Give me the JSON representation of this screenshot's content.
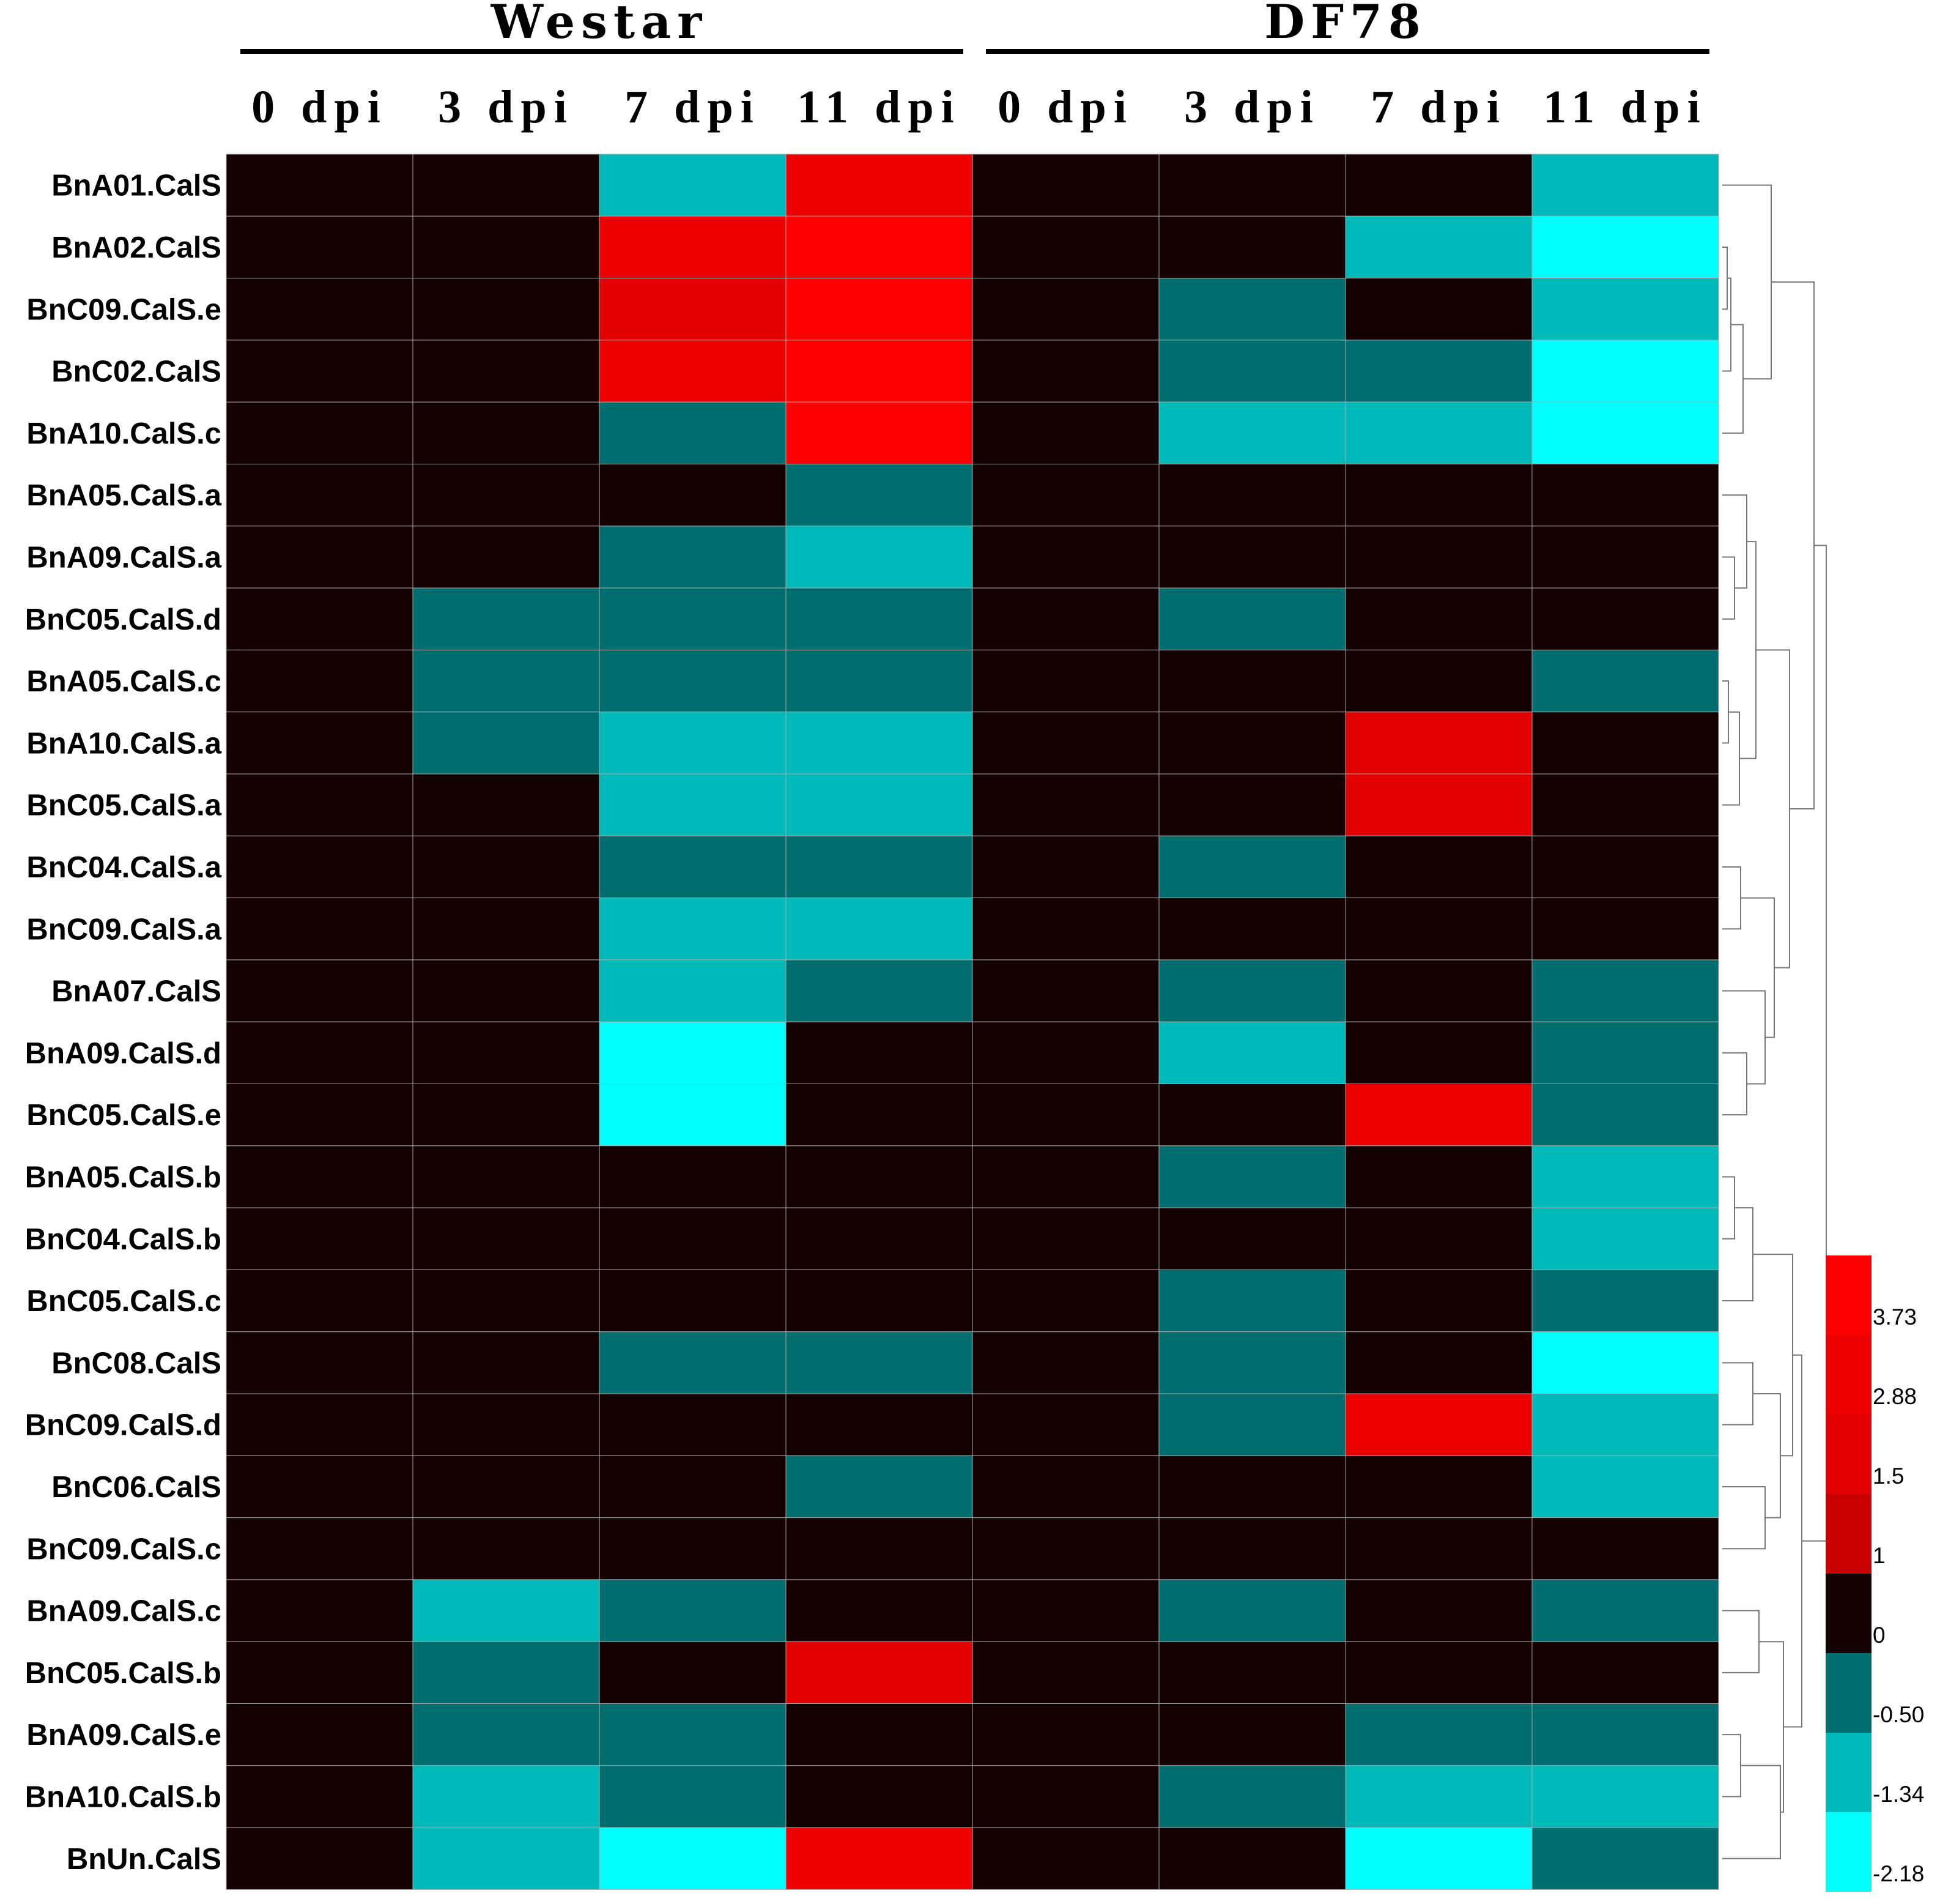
{
  "chart_data": {
    "type": "heatmap",
    "groups": [
      "Westar",
      "DF78"
    ],
    "columns": [
      "0 dpi",
      "3 dpi",
      "7 dpi",
      "11 dpi",
      "0 dpi",
      "3 dpi",
      "7 dpi",
      "11 dpi"
    ],
    "rows": [
      "BnA01.CalS",
      "BnA02.CalS",
      "BnC09.CalS.e",
      "BnC02.CalS",
      "BnA10.CalS.c",
      "BnA05.CalS.a",
      "BnA09.CalS.a",
      "BnC05.CalS.d",
      "BnA05.CalS.c",
      "BnA10.CalS.a",
      "BnC05.CalS.a",
      "BnC04.CalS.a",
      "BnC09.CalS.a",
      "BnA07.CalS",
      "BnA09.CalS.d",
      "BnC05.CalS.e",
      "BnA05.CalS.b",
      "BnC04.CalS.b",
      "BnC05.CalS.c",
      "BnC08.CalS",
      "BnC09.CalS.d",
      "BnC06.CalS",
      "BnC09.CalS.c",
      "BnA09.CalS.c",
      "BnC05.CalS.b",
      "BnA09.CalS.e",
      "BnA10.CalS.b",
      "BnUn.CalS"
    ],
    "values": [
      [
        0,
        0,
        -1.0,
        3.3,
        0,
        0,
        0,
        -1.0
      ],
      [
        0,
        0,
        3.3,
        4.0,
        0,
        0,
        -1.0,
        -2.5
      ],
      [
        0,
        0,
        2.0,
        4.0,
        0,
        -0.3,
        0,
        -1.0
      ],
      [
        0,
        0,
        3.3,
        4.0,
        0,
        -0.3,
        -0.3,
        -2.5
      ],
      [
        0,
        0,
        -0.3,
        4.0,
        0,
        -1.0,
        -1.0,
        -2.5
      ],
      [
        0,
        0,
        0,
        -0.3,
        0,
        0,
        0,
        0
      ],
      [
        0,
        0,
        -0.3,
        -1.0,
        0,
        0,
        0,
        0
      ],
      [
        0,
        -0.3,
        -0.3,
        -0.3,
        0,
        -0.3,
        0,
        0
      ],
      [
        0,
        -0.3,
        -0.3,
        -0.3,
        0,
        0,
        0,
        -0.3
      ],
      [
        0,
        -0.3,
        -1.0,
        -1.0,
        0,
        0,
        2.0,
        0
      ],
      [
        0,
        0,
        -1.0,
        -1.0,
        0,
        0,
        2.0,
        0
      ],
      [
        0,
        0,
        -0.3,
        -0.3,
        0,
        -0.3,
        0,
        0
      ],
      [
        0,
        0,
        -1.0,
        -1.0,
        0,
        0,
        0,
        0
      ],
      [
        0,
        0,
        -1.0,
        -0.3,
        0,
        -0.3,
        0,
        -0.3
      ],
      [
        0,
        0,
        -2.5,
        0,
        0,
        -1.0,
        0,
        -0.3
      ],
      [
        0,
        0,
        -2.5,
        0,
        0,
        0,
        3.3,
        -0.3
      ],
      [
        0,
        0,
        0,
        0,
        0,
        -0.3,
        0,
        -1.0
      ],
      [
        0,
        0,
        0,
        0,
        0,
        0,
        0,
        -1.0
      ],
      [
        0,
        0,
        0,
        0,
        0,
        -0.3,
        0,
        -0.3
      ],
      [
        0,
        0,
        -0.3,
        -0.3,
        0,
        -0.3,
        0,
        -2.5
      ],
      [
        0,
        0,
        0,
        0,
        0,
        -0.3,
        3.3,
        -1.0
      ],
      [
        0,
        0,
        0,
        -0.3,
        0,
        0,
        0,
        -1.0
      ],
      [
        0,
        0,
        0,
        0,
        0,
        0,
        0,
        0
      ],
      [
        0,
        -1.0,
        -0.3,
        0,
        0,
        -0.3,
        0,
        -0.3
      ],
      [
        0,
        -0.3,
        0,
        2.0,
        0,
        0,
        0,
        0
      ],
      [
        0,
        -0.3,
        -0.3,
        0,
        0,
        0,
        -0.3,
        -0.3
      ],
      [
        0,
        -1.0,
        -0.3,
        0,
        0,
        -0.3,
        -1.0,
        -1.0
      ],
      [
        0,
        -1.0,
        -2.5,
        3.3,
        0,
        0,
        -2.5,
        -0.3
      ]
    ],
    "legend": {
      "tick_labels": [
        "3.73",
        "2.88",
        "1.5",
        "1",
        "0",
        "-0.50",
        "-1.34",
        "-2.18"
      ],
      "bins": [
        {
          "min": 3.73,
          "max": 5,
          "color": "#ff0000"
        },
        {
          "min": 2.88,
          "max": 3.73,
          "color": "#ee0000"
        },
        {
          "min": 1.5,
          "max": 2.88,
          "color": "#e20000"
        },
        {
          "min": 1,
          "max": 1.5,
          "color": "#cc0000"
        },
        {
          "min": 0,
          "max": 1,
          "color": "#140000"
        },
        {
          "min": -0.5,
          "max": 0,
          "color": "#006e6e"
        },
        {
          "min": -1.34,
          "max": -0.5,
          "color": "#00b9b9"
        },
        {
          "min": -2.18,
          "max": -1.34,
          "color": "#00ffff"
        }
      ]
    },
    "dendrogram": "hierarchical clustering of rows (right side)"
  }
}
